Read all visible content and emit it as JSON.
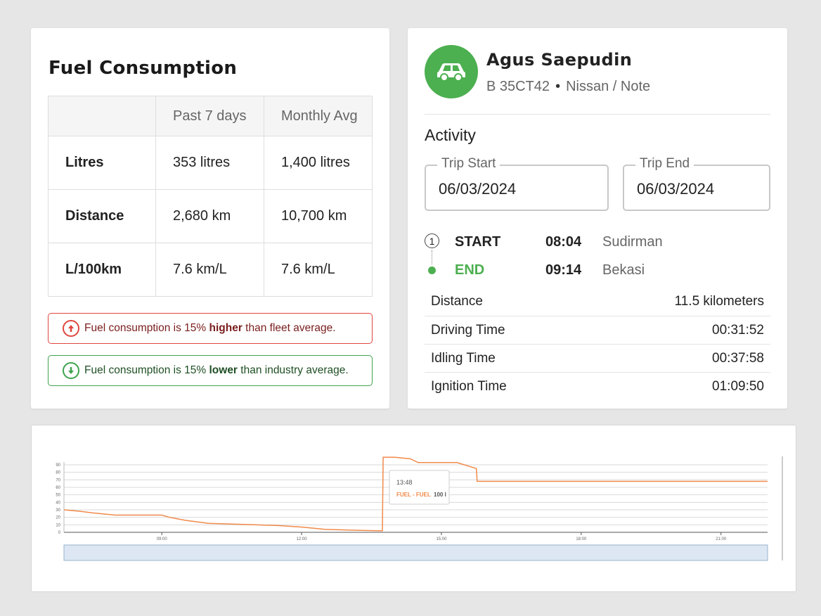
{
  "fuel": {
    "title": "Fuel Consumption",
    "headers": [
      "",
      "Past 7 days",
      "Monthly Avg"
    ],
    "rows": [
      {
        "label": "Litres",
        "past7": "353 litres",
        "monthly": "1,400 litres"
      },
      {
        "label": "Distance",
        "past7": "2,680 km",
        "monthly": "10,700 km"
      },
      {
        "label": "L/100km",
        "past7": "7.6 km/L",
        "monthly": "7.6 km/L"
      }
    ],
    "alerts": [
      {
        "prefix": "Fuel consumption is 15% ",
        "emphasis": "higher",
        "suffix": " than fleet average.",
        "color": "#e0463e"
      },
      {
        "prefix": "Fuel consumption is 15% ",
        "emphasis": "lower",
        "suffix": " than industry average.",
        "color": "#3fa34d"
      }
    ]
  },
  "driver": {
    "name": "Agus Saepudin",
    "plate": "B 35CT42",
    "separator": "•",
    "vehicle": "Nissan / Note",
    "avatar_icon": "car-icon",
    "avatar_color": "#4caf50"
  },
  "activity": {
    "title": "Activity",
    "trip_start_label": "Trip Start",
    "trip_start_value": "06/03/2024",
    "trip_end_label": "Trip End",
    "trip_end_value": "06/03/2024",
    "start": {
      "number": "1",
      "label": "START",
      "time": "08:04",
      "place": "Sudirman"
    },
    "end": {
      "label": "END",
      "time": "09:14",
      "place": "Bekasi",
      "color": "#4caf50"
    },
    "stats": [
      {
        "label": "Distance",
        "value": "11.5 kilometers"
      },
      {
        "label": "Driving Time",
        "value": "00:31:52"
      },
      {
        "label": "Idling Time",
        "value": "00:37:58"
      },
      {
        "label": "Ignition Time",
        "value": "01:09:50"
      }
    ]
  },
  "chart_data": {
    "type": "line",
    "series": [
      {
        "name": "FUEL - FUEL",
        "color": "#f08a4b"
      }
    ],
    "ylim": [
      0,
      100
    ],
    "yticks": [
      "0",
      "10",
      "20",
      "30",
      "40",
      "50",
      "60",
      "70",
      "80",
      "90"
    ],
    "xticks": [
      "09:00",
      "12:00",
      "15:00",
      "18:00",
      "21:00"
    ],
    "x": [
      "06:54",
      "07:15",
      "07:30",
      "08:00",
      "09:00",
      "09:10",
      "09:30",
      "10:00",
      "11:00",
      "11:30",
      "12:00",
      "12:30",
      "13:00",
      "13:44",
      "13:45",
      "14:00",
      "14:20",
      "14:30",
      "15:20",
      "15:45",
      "15:46",
      "22:00"
    ],
    "y": [
      30,
      28,
      26,
      23,
      23,
      20,
      16,
      12,
      10,
      9,
      7,
      4,
      3,
      2,
      100,
      100,
      98,
      93,
      93,
      85,
      68,
      68
    ],
    "tooltip": {
      "time": "13:48",
      "series_label": "FUEL - FUEL",
      "value": "100 l"
    }
  }
}
